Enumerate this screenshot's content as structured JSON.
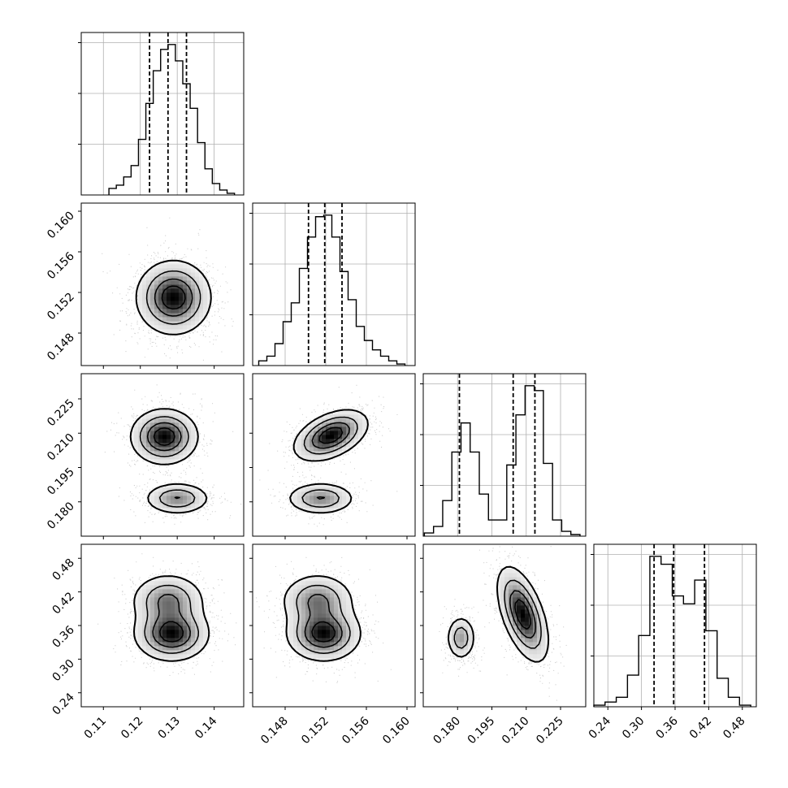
{
  "chart_data": {
    "type": "corner",
    "grid": true,
    "quantile_lines": "dashed vertical lines on diagonal histograms",
    "params": [
      {
        "range": [
          0.104,
          0.148
        ],
        "ticks": [
          "0.11",
          "0.12",
          "0.13",
          "0.14"
        ],
        "quantiles": [
          0.1225,
          0.1275,
          0.1325
        ],
        "hist": {
          "x": [
            0.1125,
            0.1145,
            0.1165,
            0.1185,
            0.1205,
            0.1225,
            0.1245,
            0.1265,
            0.1285,
            0.1305,
            0.1325,
            0.1345,
            0.1365,
            0.1385,
            0.1405,
            0.1425,
            0.1445
          ],
          "y": [
            4,
            6,
            11,
            18,
            34,
            56,
            76,
            89,
            92,
            82,
            68,
            53,
            32,
            16,
            7,
            3,
            1
          ]
        },
        "modes": [
          {
            "mean": 0.128,
            "sd": 0.005
          }
        ]
      },
      {
        "range": [
          0.1448,
          0.1608
        ],
        "ticks": [
          "0.148",
          "0.152",
          "0.156",
          "0.160"
        ],
        "quantiles": [
          0.1503,
          0.1519,
          0.1536
        ],
        "hist": {
          "x": [
            0.1458,
            0.1466,
            0.1474,
            0.1482,
            0.149,
            0.1498,
            0.1506,
            0.1514,
            0.1522,
            0.153,
            0.1538,
            0.1546,
            0.1554,
            0.1562,
            0.157,
            0.1578,
            0.1586,
            0.1594
          ],
          "y": [
            3,
            6,
            14,
            28,
            40,
            62,
            82,
            95,
            96,
            82,
            60,
            42,
            25,
            16,
            10,
            6,
            3,
            1
          ]
        },
        "modes": [
          {
            "mean": 0.152,
            "sd": 0.0018
          }
        ]
      },
      {
        "range": [
          0.165,
          0.236
        ],
        "ticks": [
          "0.180",
          "0.195",
          "0.210",
          "0.225"
        ],
        "quantiles": [
          0.1808,
          0.2043,
          0.2138
        ],
        "hist": {
          "x": [
            0.1675,
            0.1715,
            0.1755,
            0.1795,
            0.1835,
            0.1875,
            0.1915,
            0.1955,
            0.1995,
            0.2035,
            0.2075,
            0.2115,
            0.2155,
            0.2195,
            0.2235,
            0.2275,
            0.2315
          ],
          "y": [
            2,
            6,
            22,
            52,
            70,
            52,
            26,
            10,
            10,
            44,
            75,
            93,
            90,
            45,
            10,
            3,
            1
          ]
        },
        "modes": [
          {
            "mean": 0.1815,
            "sd": 0.0035
          },
          {
            "mean": 0.209,
            "sd": 0.0055
          }
        ]
      },
      {
        "range": [
          0.215,
          0.505
        ],
        "ticks": [
          "0.24",
          "0.30",
          "0.36",
          "0.42",
          "0.48"
        ],
        "quantiles": [
          0.3225,
          0.3575,
          0.4125
        ],
        "hist": {
          "x": [
            0.225,
            0.245,
            0.265,
            0.285,
            0.305,
            0.325,
            0.345,
            0.365,
            0.385,
            0.405,
            0.425,
            0.445,
            0.465,
            0.485
          ],
          "y": [
            1,
            3,
            6,
            20,
            45,
            95,
            90,
            70,
            65,
            80,
            48,
            18,
            6,
            1
          ]
        },
        "modes": [
          {
            "mean": 0.345,
            "sd": 0.025
          },
          {
            "mean": 0.405,
            "sd": 0.025
          }
        ]
      }
    ],
    "pairs": [
      {
        "row": 1,
        "col": 0,
        "modes": [
          {
            "mx": 0.129,
            "my": 0.1515,
            "sx": 0.005,
            "sy": 0.0018,
            "w": 1
          }
        ]
      },
      {
        "row": 2,
        "col": 0,
        "modes": [
          {
            "mx": 0.1265,
            "my": 0.2085,
            "sx": 0.0045,
            "sy": 0.006,
            "w": 0.62
          },
          {
            "mx": 0.13,
            "my": 0.1815,
            "sx": 0.0045,
            "sy": 0.0035,
            "w": 0.38
          }
        ]
      },
      {
        "row": 2,
        "col": 1,
        "modes": [
          {
            "mx": 0.1525,
            "my": 0.209,
            "sx": 0.0018,
            "sy": 0.0055,
            "w": 0.62,
            "rho": 0.45
          },
          {
            "mx": 0.1515,
            "my": 0.1815,
            "sx": 0.0017,
            "sy": 0.0035,
            "w": 0.38
          }
        ]
      },
      {
        "row": 3,
        "col": 0,
        "modes": [
          {
            "mx": 0.1285,
            "my": 0.345,
            "sx": 0.005,
            "sy": 0.024,
            "w": 0.6
          },
          {
            "mx": 0.1275,
            "my": 0.405,
            "sx": 0.005,
            "sy": 0.024,
            "w": 0.4
          }
        ]
      },
      {
        "row": 3,
        "col": 1,
        "modes": [
          {
            "mx": 0.1518,
            "my": 0.345,
            "sx": 0.0018,
            "sy": 0.024,
            "w": 0.6
          },
          {
            "mx": 0.1512,
            "my": 0.405,
            "sx": 0.0018,
            "sy": 0.024,
            "w": 0.4
          }
        ]
      },
      {
        "row": 3,
        "col": 2,
        "modes": [
          {
            "mx": 0.1815,
            "my": 0.338,
            "sx": 0.0032,
            "sy": 0.02,
            "w": 0.35
          },
          {
            "mx": 0.2085,
            "my": 0.38,
            "sx": 0.0055,
            "sy": 0.042,
            "w": 0.65,
            "rho": -0.55
          }
        ]
      }
    ]
  }
}
